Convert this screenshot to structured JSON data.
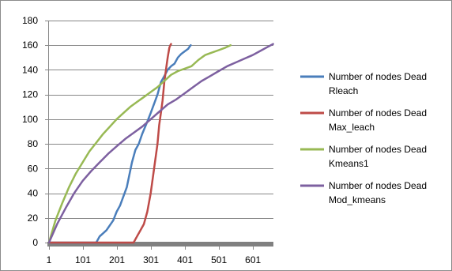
{
  "chart_data": {
    "type": "line",
    "title": "",
    "xlabel": "",
    "ylabel": "",
    "xlim": [
      1,
      661
    ],
    "ylim": [
      0,
      180
    ],
    "x_ticks": [
      1,
      101,
      201,
      301,
      401,
      501,
      601
    ],
    "y_ticks": [
      0,
      20,
      40,
      60,
      80,
      100,
      120,
      140,
      160,
      180
    ],
    "x_tick_labels": [
      "1",
      "101",
      "201",
      "301",
      "401",
      "501",
      "601"
    ],
    "y_tick_labels": [
      "0",
      "20",
      "40",
      "60",
      "80",
      "100",
      "120",
      "140",
      "160",
      "180"
    ],
    "grid": "horizontal",
    "legend_position": "right",
    "series": [
      {
        "name": "Number of nodes Dead Rleach",
        "color": "#4a7ebb",
        "x": [
          1,
          140,
          150,
          170,
          190,
          200,
          210,
          230,
          245,
          255,
          265,
          275,
          290,
          300,
          320,
          330,
          340,
          350,
          360,
          370,
          380,
          390,
          400,
          405,
          410,
          415,
          418
        ],
        "y": [
          0,
          0,
          5,
          10,
          18,
          25,
          30,
          45,
          65,
          75,
          80,
          88,
          98,
          105,
          120,
          130,
          135,
          140,
          143,
          145,
          150,
          153,
          155,
          156,
          157,
          159,
          160
        ]
      },
      {
        "name": "Number of nodes Dead Max_leach",
        "color": "#be4b48",
        "x": [
          1,
          250,
          260,
          270,
          280,
          290,
          300,
          310,
          320,
          325,
          330,
          335,
          340,
          345,
          350,
          355,
          358,
          360
        ],
        "y": [
          0,
          0,
          5,
          10,
          15,
          25,
          40,
          60,
          80,
          95,
          105,
          115,
          130,
          140,
          150,
          158,
          160,
          161
        ]
      },
      {
        "name": "Number of nodes Dead Kmeans1",
        "color": "#98b954",
        "x": [
          1,
          20,
          40,
          60,
          80,
          100,
          120,
          140,
          160,
          180,
          200,
          220,
          240,
          260,
          280,
          300,
          320,
          340,
          360,
          380,
          400,
          420,
          440,
          460,
          480,
          500,
          520,
          535
        ],
        "y": [
          0,
          18,
          32,
          45,
          56,
          65,
          74,
          81,
          88,
          94,
          100,
          105,
          110,
          114,
          118,
          122,
          126,
          131,
          136,
          139,
          141,
          143,
          148,
          152,
          154,
          156,
          158,
          160
        ]
      },
      {
        "name": "Number of nodes Dead Mod_kmeans",
        "color": "#7d60a0",
        "x": [
          1,
          25,
          50,
          75,
          100,
          125,
          150,
          175,
          200,
          225,
          250,
          275,
          300,
          325,
          350,
          375,
          400,
          425,
          450,
          475,
          500,
          525,
          550,
          575,
          600,
          620,
          640,
          660
        ],
        "y": [
          0,
          15,
          28,
          40,
          50,
          58,
          65,
          72,
          78,
          84,
          89,
          94,
          100,
          106,
          112,
          116,
          121,
          126,
          131,
          135,
          139,
          143,
          146,
          149,
          152,
          155,
          158,
          161
        ]
      }
    ]
  }
}
